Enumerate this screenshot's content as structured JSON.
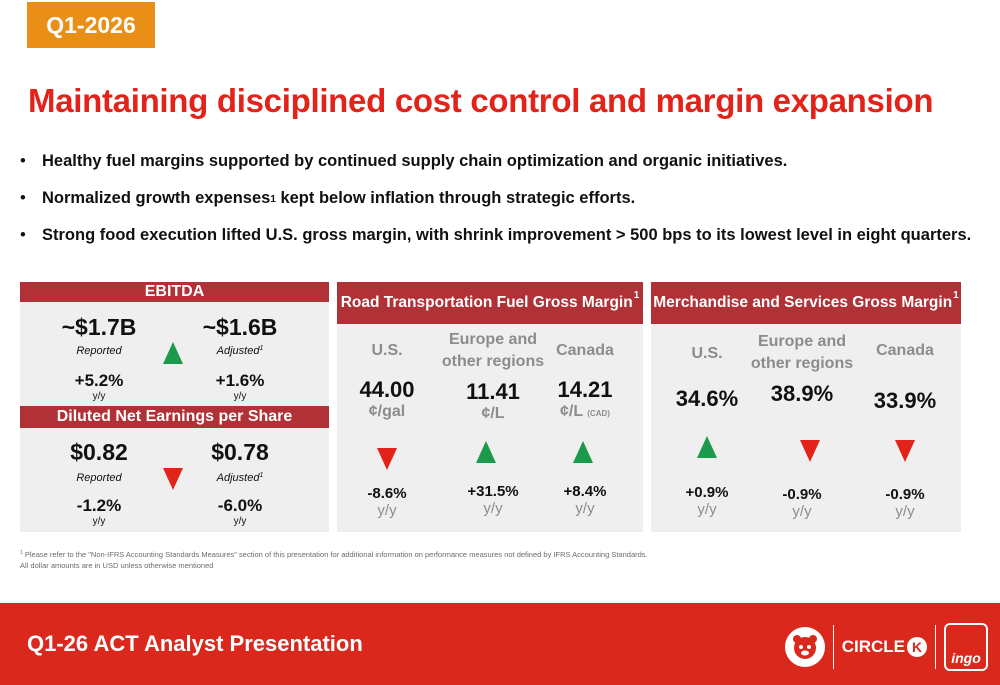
{
  "header": {
    "quarter_tag": "Q1-2026",
    "headline": "Maintaining disciplined cost control and margin expansion",
    "tag_color": "#e98e16",
    "headline_color": "#e2231a"
  },
  "bullets": [
    {
      "text": "Healthy fuel margins supported by continued supply chain optimization and organic initiatives."
    },
    {
      "text_before": "Normalized growth expenses",
      "sup": "1",
      "text_after": " kept below inflation through strategic efforts."
    },
    {
      "text": "Strong food execution lifted U.S. gross margin, with shrink improvement > 500 bps to its lowest level in eight quarters."
    }
  ],
  "ebitda": {
    "title": "EBITDA",
    "reported": {
      "value": "~$1.7B",
      "label": "Reported",
      "change": "+5.2%",
      "yy": "y/y"
    },
    "adjusted": {
      "value": "~$1.6B",
      "label": "Adjusted",
      "sup": "1",
      "change": "+1.6%",
      "yy": "y/y"
    },
    "trend": "up"
  },
  "eps": {
    "title": "Diluted Net Earnings per Share",
    "reported": {
      "value": "$0.82",
      "label": "Reported",
      "change": "-1.2%",
      "yy": "y/y"
    },
    "adjusted": {
      "value": "$0.78",
      "label": "Adjusted",
      "sup": "1",
      "change": "-6.0%",
      "yy": "y/y"
    },
    "trend": "down"
  },
  "road_fuel": {
    "title": "Road Transportation Fuel Gross Margin",
    "sup": "1",
    "columns": [
      {
        "region": "U.S.",
        "value": "44.00",
        "unit": "¢/gal",
        "unit_note": "",
        "trend": "down",
        "change": "-8.6%",
        "yy": "y/y"
      },
      {
        "region": "Europe and other regions",
        "value": "11.41",
        "unit": "¢/L",
        "unit_note": "",
        "trend": "up",
        "change": "+31.5%",
        "yy": "y/y"
      },
      {
        "region": "Canada",
        "value": "14.21",
        "unit": "¢/L",
        "unit_note": "(CAD)",
        "trend": "up",
        "change": "+8.4%",
        "yy": "y/y"
      }
    ]
  },
  "merchandise": {
    "title": "Merchandise and Services Gross Margin",
    "sup": "1",
    "columns": [
      {
        "region": "U.S.",
        "value": "34.6%",
        "trend": "up",
        "change": "+0.9%",
        "yy": "y/y"
      },
      {
        "region": "Europe and other regions",
        "value": "38.9%",
        "trend": "down",
        "change": "-0.9%",
        "yy": "y/y"
      },
      {
        "region": "Canada",
        "value": "33.9%",
        "trend": "down",
        "change": "-0.9%",
        "yy": "y/y"
      }
    ]
  },
  "footnotes": {
    "line1_sup": "1",
    "line1": "Please refer to the \"Non-IFRS Accounting Standards Measures\" section of this presentation for additional information on performance measures not defined by IFRS Accounting Standards.",
    "line2": "All dollar amounts are in USD unless otherwise mentioned"
  },
  "footer": {
    "title": "Q1-26 ACT Analyst Presentation",
    "logo_circle_k": "CIRCLE",
    "logo_circle_k_mark": "K",
    "logo_ingo": "ingo",
    "brand_color": "#da291c"
  },
  "colors": {
    "panel_bar": "#b03236",
    "up": "#1a9a4a",
    "down": "#e2231a",
    "panel_bg": "#efefef"
  }
}
